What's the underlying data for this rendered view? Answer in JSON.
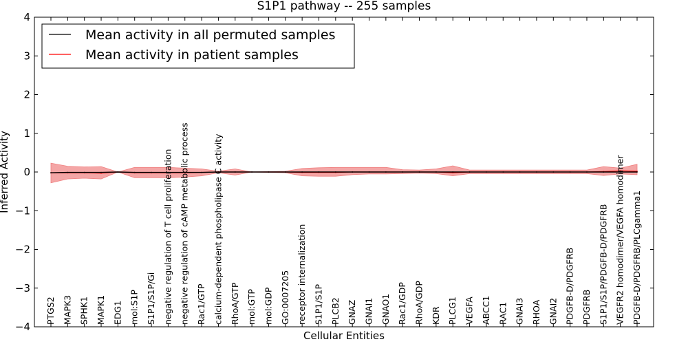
{
  "chart_data": {
    "type": "line",
    "title": "S1P1 pathway -- 255 samples",
    "xlabel": "Cellular Entities",
    "ylabel": "Inferred Activity",
    "ylim": [
      -4,
      4
    ],
    "yticks": [
      "−4",
      "−3",
      "−2",
      "−1",
      "0",
      "1",
      "2",
      "3",
      "4"
    ],
    "ytick_values": [
      -4,
      -3,
      -2,
      -1,
      0,
      1,
      2,
      3,
      4
    ],
    "categories": [
      "PTGS2",
      "MAPK3",
      "SPHK1",
      "MAPK1",
      "EDG1",
      "mol:S1P",
      "S1P1/S1P/Gi",
      "negative regulation of T cell proliferation",
      "negative regulation of cAMP metabolic process",
      "Rac1/GTP",
      "calcium-dependent phospholipase C activity",
      "RhoA/GTP",
      "mol:GTP",
      "mol:GDP",
      "GO:0007205",
      "receptor internalization",
      "S1P1/S1P",
      "PLCB2",
      "GNAZ",
      "GNAI1",
      "GNAO1",
      "Rac1/GDP",
      "RhoA/GDP",
      "KDR",
      "PLCG1",
      "VEGFA",
      "ABCC1",
      "RAC1",
      "GNAI3",
      "RHOA",
      "GNAI2",
      "PDGFB-D/PDGFRB",
      "PDGFRB",
      "S1P1/S1P/PDGFB-D/PDGFRB",
      "VEGFR2 homodimer/VEGFA homodimer",
      "PDGFB-D/PDGFRB/PLCgamma1"
    ],
    "legend_position": "upper-left",
    "series": [
      {
        "name": "Mean activity in all permuted samples",
        "color": "#000000",
        "values": [
          -0.02,
          -0.01,
          -0.01,
          -0.01,
          0.0,
          -0.01,
          -0.01,
          -0.01,
          -0.01,
          -0.01,
          0.0,
          0.0,
          0.0,
          0.0,
          0.0,
          0.0,
          0.0,
          0.0,
          0.0,
          0.0,
          0.0,
          0.0,
          0.0,
          0.0,
          0.0,
          0.0,
          0.0,
          0.0,
          0.0,
          0.0,
          0.0,
          0.0,
          0.0,
          0.0,
          0.0,
          0.0
        ]
      },
      {
        "name": "Mean activity in patient samples",
        "color": "#ff0000",
        "band_color": "#f08080",
        "values": [
          -0.02,
          -0.02,
          -0.02,
          -0.03,
          0.0,
          -0.02,
          -0.02,
          -0.02,
          -0.02,
          -0.01,
          0.0,
          0.0,
          0.0,
          0.0,
          0.0,
          -0.01,
          -0.01,
          -0.01,
          0.0,
          0.0,
          0.0,
          0.0,
          0.0,
          0.0,
          -0.02,
          0.0,
          0.0,
          0.0,
          0.0,
          0.0,
          0.0,
          0.0,
          0.0,
          0.01,
          0.03,
          0.02
        ],
        "band_upper": [
          0.23,
          0.15,
          0.13,
          0.14,
          0.0,
          0.12,
          0.12,
          0.12,
          0.1,
          0.08,
          0.02,
          0.08,
          0.0,
          0.01,
          0.02,
          0.09,
          0.11,
          0.12,
          0.12,
          0.12,
          0.12,
          0.06,
          0.05,
          0.08,
          0.16,
          0.05,
          0.05,
          0.05,
          0.05,
          0.05,
          0.05,
          0.05,
          0.05,
          0.14,
          0.1,
          0.2
        ],
        "band_lower": [
          -0.28,
          -0.18,
          -0.16,
          -0.18,
          0.0,
          -0.15,
          -0.15,
          -0.15,
          -0.13,
          -0.1,
          -0.02,
          -0.08,
          0.0,
          -0.01,
          -0.02,
          -0.1,
          -0.11,
          -0.11,
          -0.07,
          -0.05,
          -0.05,
          -0.04,
          -0.03,
          -0.04,
          -0.1,
          -0.04,
          -0.04,
          -0.04,
          -0.04,
          -0.04,
          -0.04,
          -0.04,
          -0.04,
          -0.09,
          -0.05,
          -0.07
        ]
      }
    ]
  }
}
